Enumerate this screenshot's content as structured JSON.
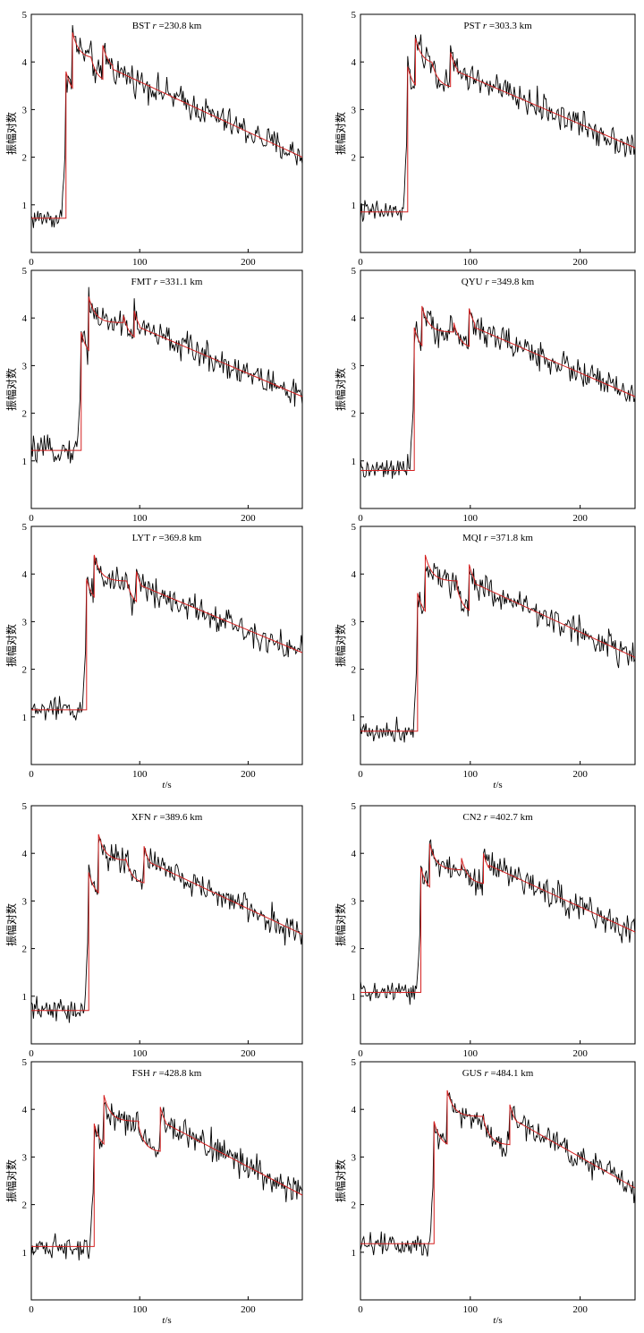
{
  "figure": {
    "ylabel": "振幅对数",
    "xlabel_var": "t",
    "xlabel_unit": "/s",
    "colors": {
      "observed": "#000000",
      "model": "#d42020",
      "frame": "#000000"
    }
  },
  "chart_data": [
    {
      "type": "line",
      "station": "BST",
      "r_label": "r",
      "r_value": "=230.8 km",
      "xlim": [
        0,
        250
      ],
      "ylim": [
        0,
        5
      ],
      "xticks": [
        0,
        100,
        200
      ],
      "yticks": [
        1,
        2,
        3,
        4,
        5
      ],
      "show_xlabel": false,
      "model": {
        "base": 0.72,
        "onset": 32,
        "steps": [
          [
            32,
            3.8
          ],
          [
            38,
            4.62
          ],
          [
            55,
            4.1
          ],
          [
            66,
            4.35
          ]
        ],
        "tail_start": 75,
        "tail_level": 3.85,
        "end_level": 2.0
      },
      "series": [
        {
          "name": "observed"
        },
        {
          "name": "model"
        }
      ]
    },
    {
      "type": "line",
      "station": "PST",
      "r_label": "r",
      "r_value": "=303.3 km",
      "xlim": [
        0,
        250
      ],
      "ylim": [
        0,
        5
      ],
      "xticks": [
        0,
        100,
        200
      ],
      "yticks": [
        1,
        2,
        3,
        4,
        5
      ],
      "show_xlabel": false,
      "model": {
        "base": 0.85,
        "onset": 43,
        "steps": [
          [
            43,
            3.9
          ],
          [
            50,
            4.5
          ],
          [
            65,
            4.0
          ],
          [
            82,
            4.2
          ]
        ],
        "tail_start": 88,
        "tail_level": 3.8,
        "end_level": 2.2
      },
      "series": [
        {
          "name": "observed"
        },
        {
          "name": "model"
        }
      ]
    },
    {
      "type": "line",
      "station": "FMT",
      "r_label": "r",
      "r_value": "=331.1 km",
      "xlim": [
        0,
        250
      ],
      "ylim": [
        0,
        5
      ],
      "xticks": [
        0,
        100,
        200
      ],
      "yticks": [
        1,
        2,
        3,
        4,
        5
      ],
      "show_xlabel": false,
      "model": {
        "base": 1.22,
        "onset": 46,
        "steps": [
          [
            46,
            3.7
          ],
          [
            53,
            4.45
          ],
          [
            85,
            4.05
          ],
          [
            95,
            4.15
          ]
        ],
        "tail_start": 100,
        "tail_level": 3.8,
        "end_level": 2.35
      },
      "series": [
        {
          "name": "observed"
        },
        {
          "name": "model"
        }
      ]
    },
    {
      "type": "line",
      "station": "QYU",
      "r_label": "r",
      "r_value": "=349.8 km",
      "xlim": [
        0,
        250
      ],
      "ylim": [
        0,
        5
      ],
      "xticks": [
        0,
        100,
        200
      ],
      "yticks": [
        1,
        2,
        3,
        4,
        5
      ],
      "show_xlabel": false,
      "model": {
        "base": 0.8,
        "onset": 49,
        "steps": [
          [
            49,
            3.8
          ],
          [
            56,
            4.25
          ],
          [
            85,
            3.9
          ],
          [
            99,
            4.2
          ]
        ],
        "tail_start": 104,
        "tail_level": 3.8,
        "end_level": 2.35
      },
      "series": [
        {
          "name": "observed"
        },
        {
          "name": "model"
        }
      ]
    },
    {
      "type": "line",
      "station": "LYT",
      "r_label": "r",
      "r_value": "=369.8 km",
      "xlim": [
        0,
        250
      ],
      "ylim": [
        0,
        5
      ],
      "xticks": [
        0,
        100,
        200
      ],
      "yticks": [
        1,
        2,
        3,
        4,
        5
      ],
      "show_xlabel": true,
      "model": {
        "base": 1.15,
        "onset": 51,
        "steps": [
          [
            51,
            3.9
          ],
          [
            58,
            4.4
          ],
          [
            88,
            3.85
          ],
          [
            97,
            4.05
          ]
        ],
        "tail_start": 102,
        "tail_level": 3.75,
        "end_level": 2.35
      },
      "series": [
        {
          "name": "observed"
        },
        {
          "name": "model"
        }
      ]
    },
    {
      "type": "line",
      "station": "MQI",
      "r_label": "r",
      "r_value": "=371.8 km",
      "xlim": [
        0,
        250
      ],
      "ylim": [
        0,
        5
      ],
      "xticks": [
        0,
        100,
        200
      ],
      "yticks": [
        1,
        2,
        3,
        4,
        5
      ],
      "show_xlabel": true,
      "model": {
        "base": 0.7,
        "onset": 52,
        "steps": [
          [
            52,
            3.6
          ],
          [
            59,
            4.4
          ],
          [
            88,
            3.7
          ],
          [
            99,
            4.2
          ]
        ],
        "tail_start": 104,
        "tail_level": 3.8,
        "end_level": 2.25
      },
      "series": [
        {
          "name": "observed"
        },
        {
          "name": "model"
        }
      ]
    },
    {
      "type": "line",
      "station": "XFN",
      "r_label": "r",
      "r_value": "=389.6 km",
      "xlim": [
        0,
        250
      ],
      "ylim": [
        0,
        5
      ],
      "xticks": [
        0,
        100,
        200
      ],
      "yticks": [
        1,
        2,
        3,
        4,
        5
      ],
      "show_xlabel": false,
      "model": {
        "base": 0.7,
        "onset": 53,
        "steps": [
          [
            53,
            3.6
          ],
          [
            62,
            4.4
          ],
          [
            87,
            3.9
          ],
          [
            104,
            4.15
          ]
        ],
        "tail_start": 110,
        "tail_level": 3.8,
        "end_level": 2.3
      },
      "series": [
        {
          "name": "observed"
        },
        {
          "name": "model"
        }
      ]
    },
    {
      "type": "line",
      "station": "CN2",
      "r_label": "r",
      "r_value": "=402.7 km",
      "xlim": [
        0,
        250
      ],
      "ylim": [
        0,
        5
      ],
      "xticks": [
        0,
        100,
        200
      ],
      "yticks": [
        1,
        2,
        3,
        4,
        5
      ],
      "show_xlabel": false,
      "model": {
        "base": 1.08,
        "onset": 55,
        "steps": [
          [
            55,
            3.7
          ],
          [
            63,
            4.2
          ],
          [
            92,
            3.9
          ],
          [
            112,
            4.0
          ]
        ],
        "tail_start": 117,
        "tail_level": 3.75,
        "end_level": 2.35
      },
      "series": [
        {
          "name": "observed"
        },
        {
          "name": "model"
        }
      ]
    },
    {
      "type": "line",
      "station": "FSH",
      "r_label": "r",
      "r_value": "=428.8 km",
      "xlim": [
        0,
        250
      ],
      "ylim": [
        0,
        5
      ],
      "xticks": [
        0,
        100,
        200
      ],
      "yticks": [
        1,
        2,
        3,
        4,
        5
      ],
      "show_xlabel": true,
      "model": {
        "base": 1.12,
        "onset": 58,
        "steps": [
          [
            58,
            3.7
          ],
          [
            67,
            4.3
          ],
          [
            99,
            3.65
          ],
          [
            119,
            4.05
          ]
        ],
        "tail_start": 124,
        "tail_level": 3.7,
        "end_level": 2.2
      },
      "series": [
        {
          "name": "observed"
        },
        {
          "name": "model"
        }
      ]
    },
    {
      "type": "line",
      "station": "GUS",
      "r_label": "r",
      "r_value": "=484.1 km",
      "xlim": [
        0,
        250
      ],
      "ylim": [
        0,
        5
      ],
      "xticks": [
        0,
        100,
        200
      ],
      "yticks": [
        1,
        2,
        3,
        4,
        5
      ],
      "show_xlabel": true,
      "model": {
        "base": 1.18,
        "onset": 67,
        "steps": [
          [
            67,
            3.75
          ],
          [
            79,
            4.4
          ],
          [
            112,
            3.8
          ],
          [
            136,
            4.1
          ]
        ],
        "tail_start": 142,
        "tail_level": 3.75,
        "end_level": 2.35
      },
      "series": [
        {
          "name": "observed"
        },
        {
          "name": "model"
        }
      ]
    }
  ]
}
